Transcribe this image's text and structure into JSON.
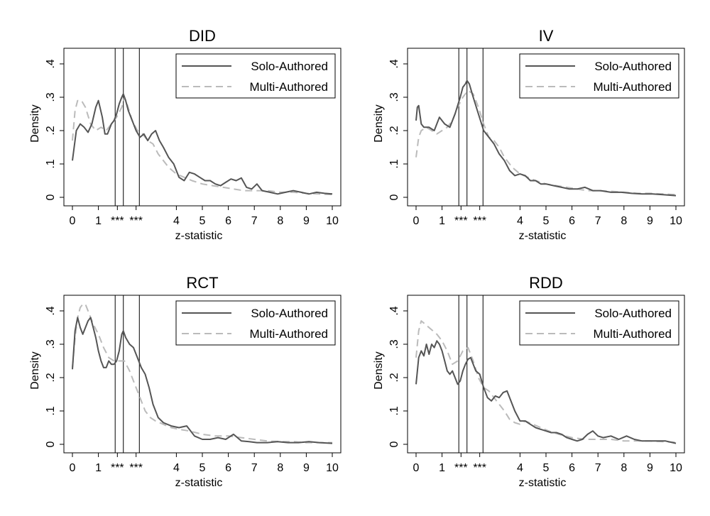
{
  "colors": {
    "solo": "#555555",
    "multi": "#bbbbbb",
    "frame": "#000000",
    "background": "#ffffff"
  },
  "legend_labels": {
    "solo": "Solo-Authored",
    "multi": "Multi-Authored"
  },
  "chart_data": [
    {
      "type": "line",
      "title": "DID",
      "xlabel": "z-statistic",
      "ylabel": "Density",
      "xlim": [
        -0.3,
        10.3
      ],
      "ylim": [
        -0.025,
        0.44
      ],
      "x_ticks": [
        "0",
        "1",
        "***",
        "***",
        "4",
        "5",
        "6",
        "7",
        "8",
        "9",
        "10"
      ],
      "y_ticks": [
        "0",
        ".1",
        ".2",
        ".3",
        ".4"
      ],
      "vlines": [
        1.645,
        1.96,
        2.576
      ],
      "legend_position": "top-right",
      "series": [
        {
          "name": "Solo-Authored",
          "style": "solid",
          "x": [
            0.0,
            0.15,
            0.3,
            0.45,
            0.6,
            0.75,
            0.9,
            1.0,
            1.15,
            1.25,
            1.35,
            1.5,
            1.6,
            1.7,
            1.8,
            1.9,
            1.96,
            2.05,
            2.15,
            2.3,
            2.45,
            2.6,
            2.75,
            2.9,
            3.05,
            3.2,
            3.35,
            3.5,
            3.7,
            3.9,
            4.1,
            4.3,
            4.5,
            4.7,
            4.9,
            5.1,
            5.3,
            5.5,
            5.7,
            5.9,
            6.1,
            6.3,
            6.5,
            6.7,
            6.9,
            7.1,
            7.3,
            7.6,
            7.9,
            8.2,
            8.5,
            8.8,
            9.1,
            9.4,
            9.7,
            10.0
          ],
          "y": [
            0.11,
            0.2,
            0.22,
            0.21,
            0.195,
            0.22,
            0.27,
            0.29,
            0.24,
            0.19,
            0.19,
            0.22,
            0.23,
            0.25,
            0.28,
            0.3,
            0.31,
            0.29,
            0.26,
            0.23,
            0.2,
            0.18,
            0.19,
            0.17,
            0.19,
            0.2,
            0.17,
            0.15,
            0.12,
            0.1,
            0.06,
            0.05,
            0.075,
            0.07,
            0.06,
            0.05,
            0.05,
            0.04,
            0.035,
            0.045,
            0.055,
            0.05,
            0.058,
            0.03,
            0.025,
            0.04,
            0.02,
            0.015,
            0.01,
            0.015,
            0.02,
            0.015,
            0.01,
            0.015,
            0.012,
            0.01
          ]
        },
        {
          "name": "Multi-Authored",
          "style": "dashed",
          "x": [
            0.0,
            0.1,
            0.2,
            0.35,
            0.5,
            0.7,
            0.9,
            1.1,
            1.3,
            1.5,
            1.7,
            1.9,
            2.0,
            2.1,
            2.3,
            2.5,
            2.7,
            2.9,
            3.1,
            3.3,
            3.5,
            3.7,
            4.0,
            4.3,
            4.6,
            5.0,
            5.4,
            5.8,
            6.2,
            6.6,
            7.0,
            7.5,
            8.0,
            8.5,
            9.0,
            9.5,
            10.0
          ],
          "y": [
            0.17,
            0.26,
            0.29,
            0.29,
            0.27,
            0.22,
            0.2,
            0.21,
            0.2,
            0.22,
            0.24,
            0.27,
            0.3,
            0.28,
            0.23,
            0.2,
            0.19,
            0.17,
            0.16,
            0.13,
            0.11,
            0.09,
            0.07,
            0.06,
            0.05,
            0.04,
            0.035,
            0.03,
            0.025,
            0.02,
            0.02,
            0.02,
            0.015,
            0.015,
            0.012,
            0.01,
            0.008
          ]
        }
      ]
    },
    {
      "type": "line",
      "title": "IV",
      "xlabel": "z-statistic",
      "ylabel": "Density",
      "xlim": [
        -0.3,
        10.3
      ],
      "ylim": [
        -0.025,
        0.44
      ],
      "x_ticks": [
        "0",
        "1",
        "***",
        "***",
        "4",
        "5",
        "6",
        "7",
        "8",
        "9",
        "10"
      ],
      "y_ticks": [
        "0",
        ".1",
        ".2",
        ".3",
        ".4"
      ],
      "vlines": [
        1.645,
        1.96,
        2.576
      ],
      "legend_position": "top-right",
      "series": [
        {
          "name": "Solo-Authored",
          "style": "solid",
          "x": [
            0.0,
            0.05,
            0.1,
            0.2,
            0.3,
            0.5,
            0.7,
            0.9,
            1.1,
            1.3,
            1.5,
            1.7,
            1.8,
            1.9,
            1.96,
            2.05,
            2.2,
            2.4,
            2.6,
            2.8,
            3.0,
            3.2,
            3.4,
            3.6,
            3.8,
            4.0,
            4.2,
            4.4,
            4.6,
            4.8,
            5.0,
            5.3,
            5.6,
            5.9,
            6.2,
            6.5,
            6.8,
            7.1,
            7.5,
            7.9,
            8.3,
            8.7,
            9.1,
            9.5,
            10.0
          ],
          "y": [
            0.23,
            0.27,
            0.275,
            0.22,
            0.21,
            0.21,
            0.2,
            0.24,
            0.22,
            0.21,
            0.25,
            0.3,
            0.33,
            0.34,
            0.35,
            0.34,
            0.3,
            0.25,
            0.2,
            0.18,
            0.16,
            0.13,
            0.11,
            0.08,
            0.065,
            0.07,
            0.065,
            0.05,
            0.05,
            0.04,
            0.04,
            0.035,
            0.03,
            0.025,
            0.025,
            0.03,
            0.02,
            0.02,
            0.015,
            0.015,
            0.012,
            0.01,
            0.01,
            0.008,
            0.005
          ]
        },
        {
          "name": "Multi-Authored",
          "style": "dashed",
          "x": [
            0.0,
            0.1,
            0.2,
            0.4,
            0.6,
            0.8,
            1.0,
            1.2,
            1.4,
            1.6,
            1.8,
            2.0,
            2.2,
            2.4,
            2.6,
            2.8,
            3.0,
            3.2,
            3.4,
            3.7,
            4.0,
            4.3,
            4.6,
            5.0,
            5.4,
            5.8,
            6.2,
            6.6,
            7.0,
            7.5,
            8.0,
            8.5,
            9.0,
            9.5,
            10.0
          ],
          "y": [
            0.12,
            0.18,
            0.2,
            0.21,
            0.2,
            0.19,
            0.2,
            0.21,
            0.23,
            0.27,
            0.3,
            0.32,
            0.31,
            0.27,
            0.22,
            0.18,
            0.17,
            0.15,
            0.12,
            0.09,
            0.07,
            0.06,
            0.05,
            0.04,
            0.035,
            0.03,
            0.025,
            0.02,
            0.02,
            0.018,
            0.015,
            0.012,
            0.012,
            0.01,
            0.008
          ]
        }
      ]
    },
    {
      "type": "line",
      "title": "RCT",
      "xlabel": "z-statistic",
      "ylabel": "Density",
      "xlim": [
        -0.3,
        10.3
      ],
      "ylim": [
        -0.025,
        0.44
      ],
      "x_ticks": [
        "0",
        "1",
        "***",
        "***",
        "4",
        "5",
        "6",
        "7",
        "8",
        "9",
        "10"
      ],
      "y_ticks": [
        "0",
        ".1",
        ".2",
        ".3",
        ".4"
      ],
      "vlines": [
        1.645,
        1.96,
        2.576
      ],
      "legend_position": "top-right",
      "series": [
        {
          "name": "Solo-Authored",
          "style": "solid",
          "x": [
            0.0,
            0.1,
            0.2,
            0.3,
            0.4,
            0.5,
            0.6,
            0.7,
            0.8,
            0.9,
            1.0,
            1.1,
            1.2,
            1.3,
            1.4,
            1.5,
            1.6,
            1.7,
            1.8,
            1.9,
            1.96,
            2.05,
            2.2,
            2.35,
            2.5,
            2.65,
            2.8,
            2.95,
            3.1,
            3.3,
            3.5,
            3.8,
            4.1,
            4.4,
            4.7,
            5.0,
            5.3,
            5.6,
            5.9,
            6.2,
            6.5,
            6.8,
            7.1,
            7.5,
            7.9,
            8.3,
            8.7,
            9.1,
            9.5,
            10.0
          ],
          "y": [
            0.225,
            0.34,
            0.38,
            0.35,
            0.33,
            0.35,
            0.37,
            0.38,
            0.35,
            0.32,
            0.28,
            0.25,
            0.23,
            0.23,
            0.25,
            0.24,
            0.24,
            0.25,
            0.28,
            0.33,
            0.34,
            0.32,
            0.3,
            0.29,
            0.26,
            0.23,
            0.21,
            0.17,
            0.12,
            0.08,
            0.065,
            0.055,
            0.05,
            0.055,
            0.025,
            0.015,
            0.015,
            0.02,
            0.015,
            0.03,
            0.01,
            0.008,
            0.005,
            0.005,
            0.008,
            0.005,
            0.005,
            0.008,
            0.005,
            0.003
          ]
        },
        {
          "name": "Multi-Authored",
          "style": "dashed",
          "x": [
            0.0,
            0.1,
            0.2,
            0.3,
            0.4,
            0.5,
            0.6,
            0.8,
            1.0,
            1.2,
            1.4,
            1.6,
            1.8,
            2.0,
            2.2,
            2.4,
            2.6,
            2.8,
            3.0,
            3.2,
            3.5,
            3.8,
            4.1,
            4.5,
            5.0,
            5.5,
            6.0,
            6.5,
            7.0,
            7.5,
            8.0,
            8.5,
            9.0,
            9.5,
            10.0
          ],
          "y": [
            0.23,
            0.32,
            0.38,
            0.41,
            0.42,
            0.42,
            0.4,
            0.36,
            0.33,
            0.29,
            0.26,
            0.25,
            0.25,
            0.25,
            0.22,
            0.18,
            0.14,
            0.1,
            0.08,
            0.07,
            0.06,
            0.05,
            0.045,
            0.04,
            0.03,
            0.025,
            0.025,
            0.02,
            0.015,
            0.01,
            0.008,
            0.008,
            0.005,
            0.005,
            0.005
          ]
        }
      ]
    },
    {
      "type": "line",
      "title": "RDD",
      "xlabel": "z-statistic",
      "ylabel": "Density",
      "xlim": [
        -0.3,
        10.3
      ],
      "ylim": [
        -0.025,
        0.44
      ],
      "x_ticks": [
        "0",
        "1",
        "***",
        "***",
        "4",
        "5",
        "6",
        "7",
        "8",
        "9",
        "10"
      ],
      "y_ticks": [
        "0",
        ".1",
        ".2",
        ".3",
        ".4"
      ],
      "vlines": [
        1.645,
        1.96,
        2.576
      ],
      "legend_position": "top-right",
      "series": [
        {
          "name": "Solo-Authored",
          "style": "solid",
          "x": [
            0.0,
            0.1,
            0.2,
            0.3,
            0.4,
            0.5,
            0.6,
            0.7,
            0.8,
            0.9,
            1.0,
            1.1,
            1.2,
            1.3,
            1.4,
            1.5,
            1.6,
            1.7,
            1.8,
            1.9,
            2.0,
            2.1,
            2.2,
            2.3,
            2.45,
            2.6,
            2.75,
            2.9,
            3.05,
            3.2,
            3.35,
            3.5,
            3.65,
            3.8,
            4.0,
            4.2,
            4.4,
            4.6,
            4.8,
            5.0,
            5.2,
            5.4,
            5.6,
            5.8,
            6.0,
            6.2,
            6.4,
            6.6,
            6.8,
            7.0,
            7.2,
            7.5,
            7.8,
            8.1,
            8.4,
            8.7,
            9.0,
            9.3,
            9.6,
            10.0
          ],
          "y": [
            0.18,
            0.26,
            0.28,
            0.265,
            0.3,
            0.27,
            0.3,
            0.29,
            0.31,
            0.3,
            0.28,
            0.25,
            0.22,
            0.21,
            0.22,
            0.2,
            0.18,
            0.19,
            0.22,
            0.24,
            0.255,
            0.26,
            0.24,
            0.22,
            0.21,
            0.17,
            0.14,
            0.13,
            0.145,
            0.14,
            0.155,
            0.16,
            0.13,
            0.1,
            0.07,
            0.07,
            0.06,
            0.05,
            0.045,
            0.04,
            0.035,
            0.035,
            0.03,
            0.02,
            0.015,
            0.01,
            0.015,
            0.03,
            0.04,
            0.025,
            0.02,
            0.025,
            0.015,
            0.025,
            0.015,
            0.01,
            0.01,
            0.01,
            0.01,
            0.003
          ]
        },
        {
          "name": "Multi-Authored",
          "style": "dashed",
          "x": [
            0.0,
            0.1,
            0.2,
            0.35,
            0.5,
            0.65,
            0.8,
            1.0,
            1.2,
            1.4,
            1.6,
            1.8,
            2.0,
            2.2,
            2.4,
            2.6,
            2.8,
            3.0,
            3.2,
            3.4,
            3.6,
            3.8,
            4.0,
            4.2,
            4.5,
            4.8,
            5.1,
            5.5,
            6.0,
            6.5,
            7.0,
            7.5,
            8.0,
            8.5,
            9.0,
            9.5,
            10.0
          ],
          "y": [
            0.26,
            0.34,
            0.37,
            0.36,
            0.35,
            0.34,
            0.33,
            0.31,
            0.28,
            0.24,
            0.25,
            0.28,
            0.29,
            0.25,
            0.2,
            0.17,
            0.16,
            0.14,
            0.12,
            0.1,
            0.075,
            0.065,
            0.06,
            0.07,
            0.06,
            0.05,
            0.04,
            0.03,
            0.02,
            0.015,
            0.015,
            0.015,
            0.01,
            0.01,
            0.01,
            0.008,
            0.006
          ]
        }
      ]
    }
  ]
}
